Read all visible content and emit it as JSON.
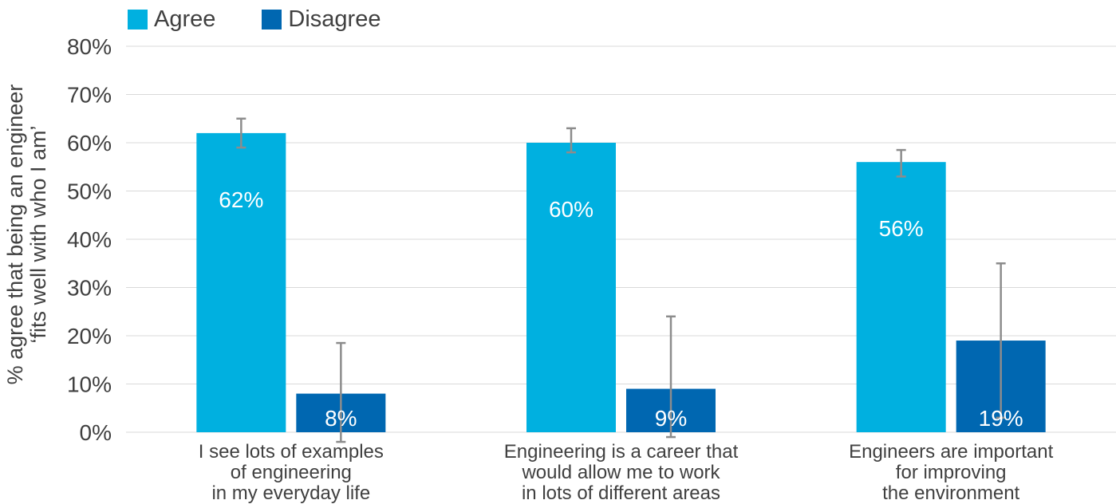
{
  "chart_data": {
    "type": "bar",
    "ylabel": "% agree that being an engineer\n‘fits well with who I am’",
    "xlabel": "",
    "ylim": [
      0,
      80
    ],
    "yticks": [
      "0%",
      "10%",
      "20%",
      "30%",
      "40%",
      "50%",
      "60%",
      "70%",
      "80%"
    ],
    "grid": true,
    "legend": "top-left",
    "categories": [
      [
        "I see lots of examples",
        "of engineering",
        "in my everyday life"
      ],
      [
        "Engineering is a career that",
        "would allow me to work",
        "in lots of different areas"
      ],
      [
        "Engineers are important",
        "for improving",
        "the environment"
      ]
    ],
    "series": [
      {
        "name": "Agree",
        "color": "#00B0E0",
        "values": [
          62,
          60,
          56
        ],
        "labels": [
          "62%",
          "60%",
          "56%"
        ],
        "error_low": [
          59,
          58,
          53
        ],
        "error_high": [
          65,
          63,
          58.5
        ]
      },
      {
        "name": "Disagree",
        "color": "#0067B1",
        "values": [
          8,
          9,
          19
        ],
        "labels": [
          "8%",
          "9%",
          "19%"
        ],
        "error_low": [
          -2,
          -1,
          3
        ],
        "error_high": [
          18.5,
          24,
          35
        ]
      }
    ],
    "errorbar_color": "#8C8C8C",
    "grid_color": "#D9D9D9",
    "axis_text_color": "#404040"
  }
}
